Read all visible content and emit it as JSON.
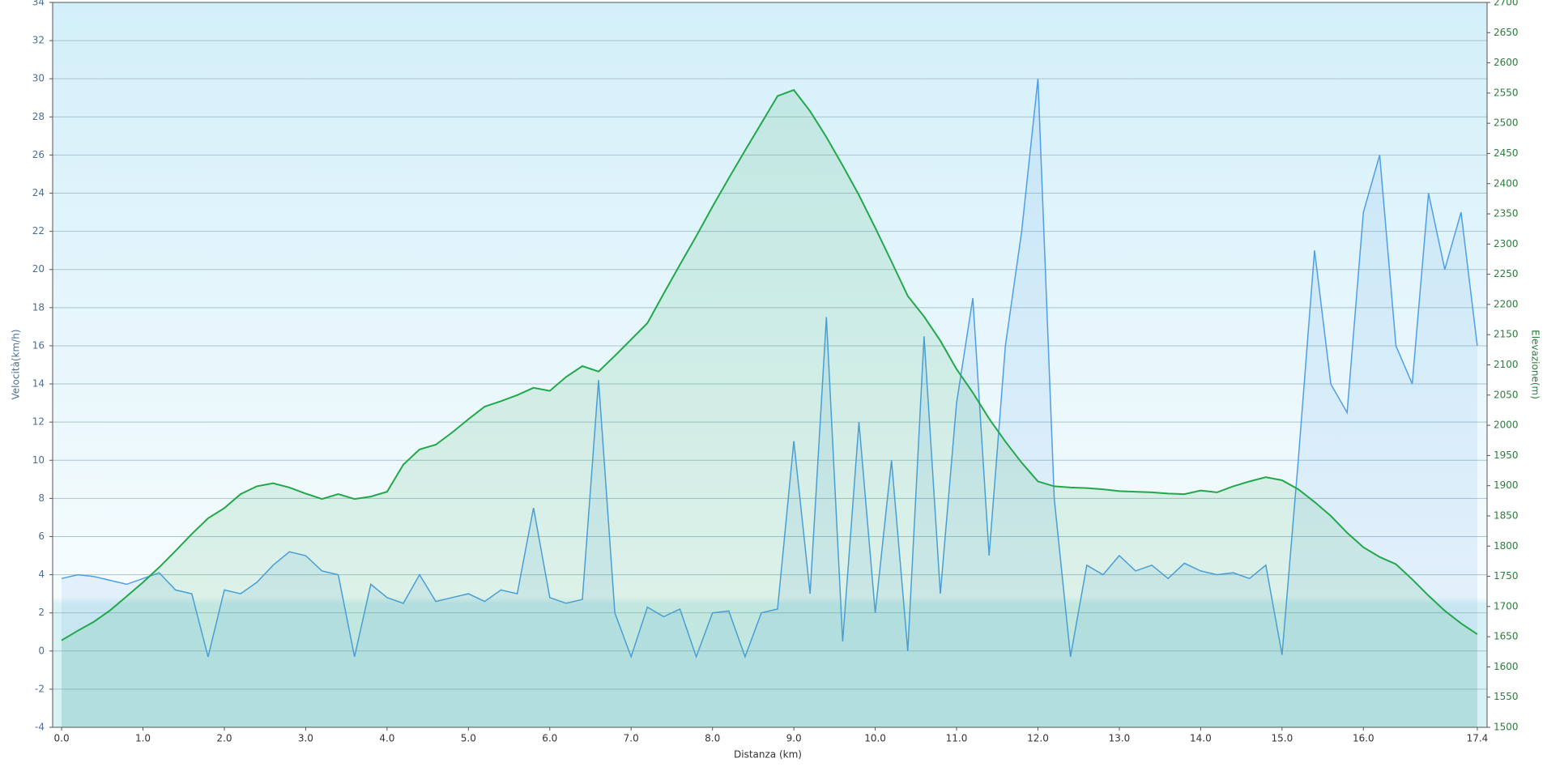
{
  "chart_data": {
    "type": "line",
    "x_label": "Distanza  (km)",
    "y_label": "Velocità(km/h)",
    "y2_label": "Elevazione(m)",
    "x": [
      0,
      0.2,
      0.4,
      0.6,
      0.8,
      1.0,
      1.2,
      1.4,
      1.6,
      1.8,
      2.0,
      2.2,
      2.4,
      2.6,
      2.8,
      3.0,
      3.2,
      3.4,
      3.6,
      3.8,
      4.0,
      4.2,
      4.4,
      4.6,
      4.8,
      5.0,
      5.2,
      5.4,
      5.6,
      5.8,
      6.0,
      6.2,
      6.4,
      6.6,
      6.8,
      7.0,
      7.2,
      7.4,
      7.6,
      7.8,
      8.0,
      8.2,
      8.4,
      8.6,
      8.8,
      9.0,
      9.2,
      9.4,
      9.6,
      9.8,
      10.0,
      10.2,
      10.4,
      10.6,
      10.8,
      11.0,
      11.2,
      11.4,
      11.6,
      11.8,
      12.0,
      12.2,
      12.4,
      12.6,
      12.8,
      13.0,
      13.2,
      13.4,
      13.6,
      13.8,
      14.0,
      14.2,
      14.4,
      14.6,
      14.8,
      15.0,
      15.2,
      15.4,
      15.6,
      15.8,
      16.0,
      16.2,
      16.4,
      16.6,
      16.8,
      17.0,
      17.2,
      17.4
    ],
    "series": [
      {
        "name": "Velocità",
        "color": "#4f9ee8",
        "axis": "y",
        "values": [
          3.8,
          4.0,
          3.9,
          3.7,
          3.5,
          3.8,
          4.1,
          3.2,
          3.0,
          -0.3,
          3.2,
          3.0,
          3.6,
          4.5,
          5.2,
          5.0,
          4.2,
          4.0,
          -0.3,
          3.5,
          2.8,
          2.5,
          4.0,
          2.6,
          2.8,
          3.0,
          2.6,
          3.2,
          3.0,
          7.5,
          2.8,
          2.5,
          2.7,
          14.2,
          2.0,
          -0.3,
          2.3,
          1.8,
          2.2,
          -0.3,
          2.0,
          2.1,
          -0.3,
          2.0,
          2.2,
          11.0,
          3.0,
          17.5,
          0.5,
          12.0,
          2.0,
          10.0,
          0.0,
          16.5,
          3.0,
          13.0,
          18.5,
          5.0,
          16.0,
          22.0,
          30.0,
          8.0,
          -0.3,
          4.5,
          4.0,
          5.0,
          4.2,
          4.5,
          3.8,
          4.6,
          4.2,
          4.0,
          4.1,
          3.8,
          4.5,
          -0.2,
          10.0,
          21.0,
          14.0,
          12.5,
          23.0,
          26.0,
          16.0,
          14.0,
          24.0,
          20.0,
          23.0,
          16.0
        ]
      },
      {
        "name": "Elevazione",
        "color": "#22a84a",
        "axis": "y2",
        "values": [
          1644,
          1660,
          1675,
          1694,
          1717,
          1740,
          1765,
          1792,
          1820,
          1846,
          1863,
          1886,
          1899,
          1904,
          1897,
          1887,
          1878,
          1886,
          1878,
          1882,
          1890,
          1935,
          1960,
          1968,
          1988,
          2010,
          2031,
          2040,
          2050,
          2062,
          2057,
          2080,
          2098,
          2089,
          2115,
          2142,
          2169,
          2218,
          2266,
          2313,
          2362,
          2409,
          2455,
          2500,
          2545,
          2555,
          2520,
          2477,
          2430,
          2381,
          2327,
          2271,
          2214,
          2180,
          2140,
          2093,
          2054,
          2011,
          1973,
          1938,
          1907,
          1899,
          1897,
          1896,
          1894,
          1891,
          1890,
          1889,
          1887,
          1886,
          1892,
          1889,
          1899,
          1907,
          1914,
          1909,
          1894,
          1873,
          1850,
          1822,
          1798,
          1782,
          1770,
          1745,
          1718,
          1693,
          1672,
          1654
        ]
      }
    ],
    "xlim": [
      -0.11,
      17.52
    ],
    "xticks": [
      {
        "value": 0,
        "label": "0.0"
      },
      {
        "value": 1,
        "label": "1.0"
      },
      {
        "value": 2,
        "label": "2.0"
      },
      {
        "value": 3,
        "label": "3.0"
      },
      {
        "value": 4,
        "label": "4.0"
      },
      {
        "value": 5,
        "label": "5.0"
      },
      {
        "value": 6,
        "label": "6.0"
      },
      {
        "value": 7,
        "label": "7.0"
      },
      {
        "value": 8,
        "label": "8.0"
      },
      {
        "value": 9,
        "label": "9.0"
      },
      {
        "value": 10,
        "label": "10.0"
      },
      {
        "value": 11,
        "label": "11.0"
      },
      {
        "value": 12,
        "label": "12.0"
      },
      {
        "value": 13,
        "label": "13.0"
      },
      {
        "value": 14,
        "label": "14.0"
      },
      {
        "value": 15,
        "label": "15.0"
      },
      {
        "value": 16,
        "label": "16.0"
      },
      17.4
    ],
    "ylim": [
      -4,
      34
    ],
    "yticks": [
      -4,
      -2,
      0,
      2,
      4,
      6,
      8,
      10,
      12,
      14,
      16,
      18,
      20,
      22,
      24,
      26,
      28,
      30,
      32,
      34
    ],
    "y2lim": [
      1500,
      2700
    ],
    "y2ticks": [
      1500,
      1550,
      1600,
      1650,
      1700,
      1750,
      1800,
      1850,
      1900,
      1950,
      2000,
      2050,
      2100,
      2150,
      2200,
      2250,
      2300,
      2350,
      2400,
      2450,
      2500,
      2550,
      2600,
      2650,
      2700
    ],
    "grid": true
  }
}
